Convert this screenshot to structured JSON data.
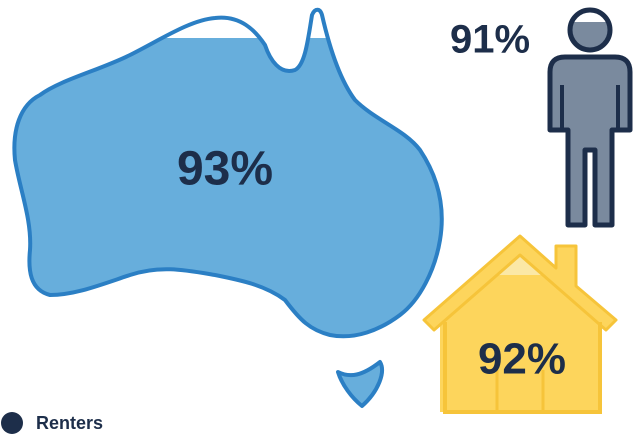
{
  "map": {
    "value": "93%"
  },
  "person": {
    "value": "91%"
  },
  "house": {
    "value": "92%"
  },
  "legend": {
    "label": "Renters"
  }
}
